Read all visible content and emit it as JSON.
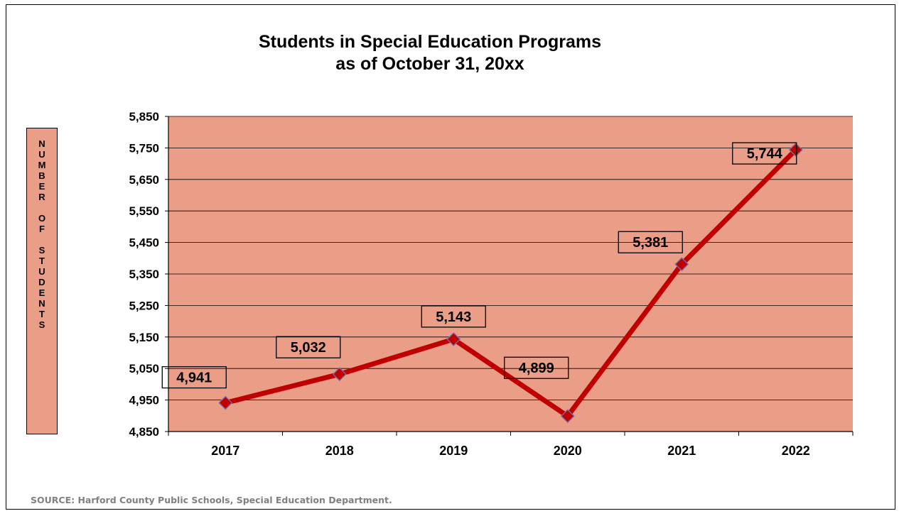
{
  "chart_data": {
    "type": "line",
    "title_lines": [
      "Students in Special Education Programs",
      "as of October 31, 20xx"
    ],
    "ylabel": "NUMBER OF STUDENTS",
    "ylabel_chars": [
      "N",
      "U",
      "M",
      "B",
      "E",
      "R",
      "",
      "O",
      "F",
      "",
      "S",
      "T",
      "U",
      "D",
      "E",
      "N",
      "T",
      "S"
    ],
    "xlabel": "",
    "categories": [
      "2017",
      "2018",
      "2019",
      "2020",
      "2021",
      "2022"
    ],
    "series": [
      {
        "values": [
          4941,
          5032,
          5143,
          4899,
          5381,
          5744
        ]
      }
    ],
    "data_labels": [
      "4,941",
      "5,032",
      "5,143",
      "4,899",
      "5,381",
      "5,744"
    ],
    "ylim": [
      4850,
      5850
    ],
    "yticks": [
      4850,
      4950,
      5050,
      5150,
      5250,
      5350,
      5450,
      5550,
      5650,
      5750,
      5850
    ],
    "ytick_labels": [
      "4,850",
      "4,950",
      "5,050",
      "5,150",
      "5,250",
      "5,350",
      "5,450",
      "5,550",
      "5,650",
      "5,750",
      "5,850"
    ],
    "grid": true,
    "legend": "none",
    "colors": {
      "plot_background": "#eb9e87",
      "line": "#c00000",
      "marker_fill": "#c00000",
      "marker_stroke": "#7070b0",
      "grid": "#000000"
    }
  },
  "footer": {
    "source": "SOURCE:  Harford County Public Schools, Special Education Department."
  }
}
